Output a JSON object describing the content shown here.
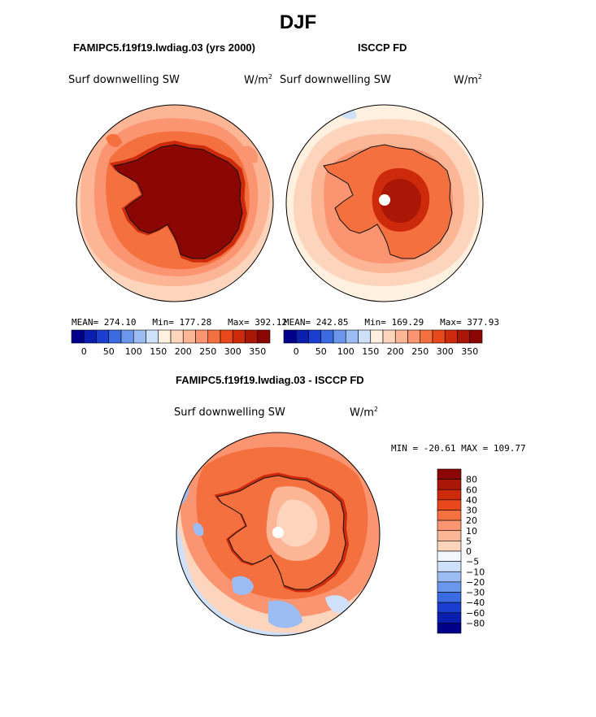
{
  "page": {
    "season": "DJF"
  },
  "panels": [
    {
      "id": "model",
      "title": "FAMIPC5.f19f19.lwdiag.03 (yrs 2000)",
      "variable": "Surf downwelling SW",
      "units_base": "W/m",
      "units_sup": "2",
      "stats": {
        "mean_label": "MEAN=",
        "mean": "274.10",
        "min_label": "Min=",
        "min": "177.28",
        "max_label": "Max=",
        "max": "392.12"
      }
    },
    {
      "id": "obs",
      "title": "ISCCP FD",
      "variable": "Surf downwelling SW",
      "units_base": "W/m",
      "units_sup": "2",
      "stats": {
        "mean_label": "MEAN=",
        "mean": "242.85",
        "min_label": "Min=",
        "min": "169.29",
        "max_label": "Max=",
        "max": "377.93"
      }
    },
    {
      "id": "diff",
      "title": "FAMIPC5.f19f19.lwdiag.03 - ISCCP FD",
      "variable": "Surf downwelling SW",
      "units_base": "W/m",
      "units_sup": "2",
      "stats": {
        "min_label": "MIN =",
        "min": "-20.61",
        "max_label": "MAX =",
        "max": "109.77"
      }
    }
  ],
  "colorbars": {
    "absolute": {
      "tick_labels": [
        "0",
        "50",
        "100",
        "150",
        "200",
        "250",
        "300",
        "350"
      ],
      "colors": [
        "#00008b",
        "#0a1fb0",
        "#1a3fd0",
        "#3a6be0",
        "#6a96ec",
        "#9cbcf4",
        "#cfe0fa",
        "#fff0e0",
        "#fdd5bc",
        "#fcb696",
        "#fb9470",
        "#f4703f",
        "#e8481c",
        "#cd2a0c",
        "#aa1706",
        "#8b0502"
      ]
    },
    "difference": {
      "tick_labels": [
        "80",
        "60",
        "40",
        "30",
        "20",
        "10",
        "5",
        "0",
        "−5",
        "−10",
        "−20",
        "−30",
        "−40",
        "−60",
        "−80"
      ],
      "colors": [
        "#8b0502",
        "#aa1706",
        "#cd2a0c",
        "#e8481c",
        "#f4703f",
        "#fb9470",
        "#fcb696",
        "#fdd5bc",
        "#f3f6fd",
        "#cfe0fa",
        "#9cbcf4",
        "#6a96ec",
        "#3a6be0",
        "#1a3fd0",
        "#0a1fb0",
        "#00008b"
      ]
    }
  },
  "chart_data": [
    {
      "type": "heatmap",
      "projection": "south polar stereographic",
      "title": "FAMIPC5.f19f19.lwdiag.03 (yrs 2000)",
      "variable": "Surf downwelling SW",
      "units": "W/m2",
      "mean": 274.1,
      "min": 177.28,
      "max": 392.12,
      "contour_levels": [
        0,
        25,
        50,
        75,
        100,
        125,
        150,
        175,
        200,
        225,
        250,
        275,
        300,
        325,
        350,
        375
      ],
      "approx_field": {
        "antarctic_interior": 375,
        "coast": 325,
        "ring_near": 300,
        "ring_mid": 250,
        "open_ocean": 215
      }
    },
    {
      "type": "heatmap",
      "projection": "south polar stereographic",
      "title": "ISCCP FD",
      "variable": "Surf downwelling SW",
      "units": "W/m2",
      "mean": 242.85,
      "min": 169.29,
      "max": 377.93,
      "contour_levels": [
        0,
        25,
        50,
        75,
        100,
        125,
        150,
        175,
        200,
        225,
        250,
        275,
        300,
        325,
        350,
        375
      ],
      "approx_field": {
        "antarctic_interior": 350,
        "coast": 300,
        "ring_near": 250,
        "ring_mid": 215,
        "open_ocean": 190
      },
      "missing_region": "south pole"
    },
    {
      "type": "heatmap",
      "projection": "south polar stereographic",
      "title": "FAMIPC5.f19f19.lwdiag.03 - ISCCP FD",
      "variable": "Surf downwelling SW",
      "units": "W/m2",
      "min": -20.61,
      "max": 109.77,
      "contour_levels": [
        -80,
        -60,
        -40,
        -30,
        -20,
        -10,
        -5,
        0,
        5,
        10,
        20,
        30,
        40,
        60,
        80
      ],
      "approx_field": {
        "antarctic_coast": 40,
        "antarctic_interior": 15,
        "ring_near": 25,
        "open_ocean": 10,
        "south_atlantic_sector": -10
      },
      "missing_region": "south pole"
    }
  ]
}
